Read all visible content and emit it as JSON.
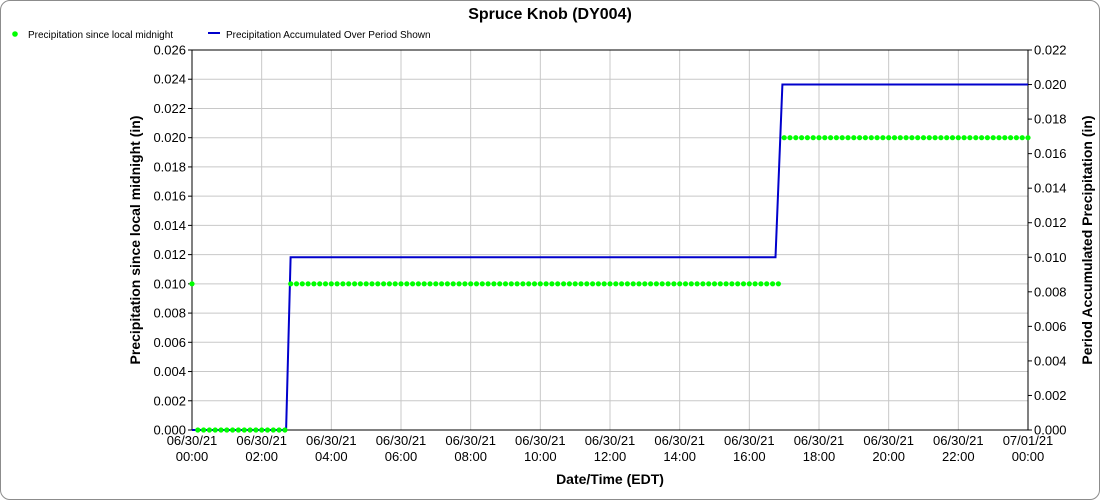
{
  "colors": {
    "dots": "#00ff00",
    "line": "#0000cc",
    "grid": "#c8c8c8"
  },
  "chart_data": {
    "type": "line",
    "title": "Spruce Knob (DY004)",
    "xlabel": "Date/Time (EDT)",
    "ylabel_left": "Precipitation since local midnight (in)",
    "ylabel_right": "Period Accumulated Precipitation (in)",
    "legend_position": "top-left",
    "grid": true,
    "x_range_hours": [
      0,
      24
    ],
    "ylim_left": [
      0,
      0.026
    ],
    "ylim_right": [
      0,
      0.022
    ],
    "x_ticks": [
      {
        "hour": 0,
        "date": "06/30/21",
        "time": "00:00"
      },
      {
        "hour": 2,
        "date": "06/30/21",
        "time": "02:00"
      },
      {
        "hour": 4,
        "date": "06/30/21",
        "time": "04:00"
      },
      {
        "hour": 6,
        "date": "06/30/21",
        "time": "06:00"
      },
      {
        "hour": 8,
        "date": "06/30/21",
        "time": "08:00"
      },
      {
        "hour": 10,
        "date": "06/30/21",
        "time": "10:00"
      },
      {
        "hour": 12,
        "date": "06/30/21",
        "time": "12:00"
      },
      {
        "hour": 14,
        "date": "06/30/21",
        "time": "14:00"
      },
      {
        "hour": 16,
        "date": "06/30/21",
        "time": "16:00"
      },
      {
        "hour": 18,
        "date": "06/30/21",
        "time": "18:00"
      },
      {
        "hour": 20,
        "date": "06/30/21",
        "time": "20:00"
      },
      {
        "hour": 22,
        "date": "06/30/21",
        "time": "22:00"
      },
      {
        "hour": 24,
        "date": "07/01/21",
        "time": "00:00"
      }
    ],
    "y_ticks_left": [
      "0.000",
      "0.002",
      "0.004",
      "0.006",
      "0.008",
      "0.010",
      "0.012",
      "0.014",
      "0.016",
      "0.018",
      "0.020",
      "0.022",
      "0.024",
      "0.026"
    ],
    "y_ticks_right": [
      "0.000",
      "0.002",
      "0.004",
      "0.006",
      "0.008",
      "0.010",
      "0.012",
      "0.014",
      "0.016",
      "0.018",
      "0.020",
      "0.022"
    ],
    "series": [
      {
        "name": "Precipitation since local midnight",
        "axis": "left",
        "style": "dots",
        "interval_minutes": 10,
        "segments": [
          {
            "from_hour": 0,
            "to_hour": 0,
            "value": 0.01
          },
          {
            "from_hour": 0.1667,
            "to_hour": 2.6667,
            "value": 0.0
          },
          {
            "from_hour": 2.8333,
            "to_hour": 16.8333,
            "value": 0.01
          },
          {
            "from_hour": 17.0,
            "to_hour": 24.0,
            "value": 0.02
          }
        ]
      },
      {
        "name": "Precipitation Accumulated Over Period Shown",
        "axis": "right",
        "style": "line",
        "points": [
          [
            0,
            0.0
          ],
          [
            2.7,
            0.0
          ],
          [
            2.83,
            0.01
          ],
          [
            16.75,
            0.01
          ],
          [
            16.95,
            0.02
          ],
          [
            24.0,
            0.02
          ]
        ]
      }
    ]
  }
}
